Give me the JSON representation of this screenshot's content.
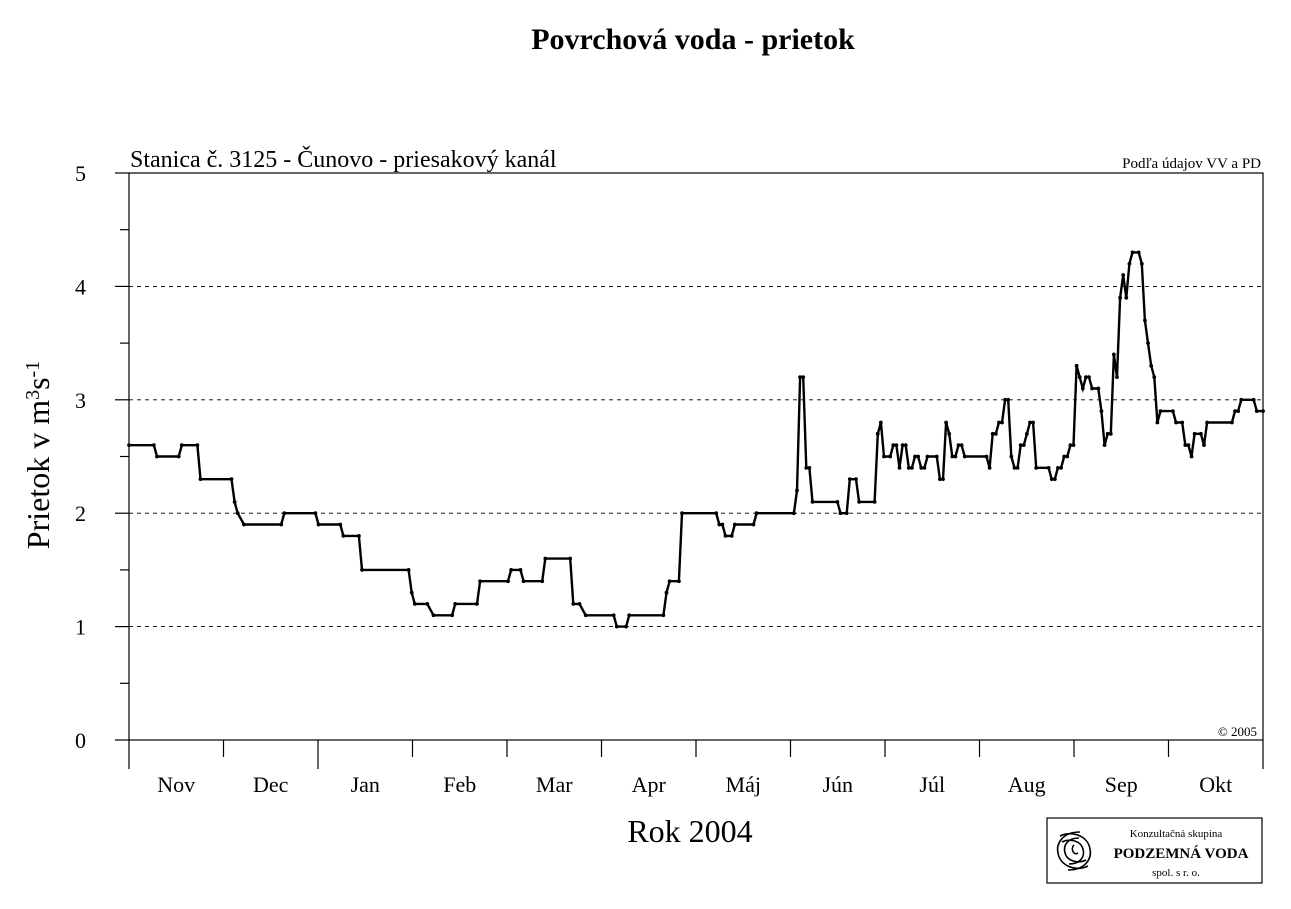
{
  "chart_data": {
    "type": "line",
    "title": "Povrchová voda - prietok",
    "subtitle": "Stanica č. 3125 - Čunovo - priesakový kanál",
    "source_note": "Podľa údajov VV a PD",
    "copyright": "© 2005",
    "xlabel": "Rok 2004",
    "ylabel": "Prietok v m",
    "ylabel_sup1": "3",
    "ylabel_mid": "s",
    "ylabel_sup2": "-1",
    "ylim": [
      0,
      5
    ],
    "yticks": [
      "0",
      "1",
      "2",
      "3",
      "4",
      "5"
    ],
    "grid": "dashed horizontal at 1, 2, 3, 4",
    "x_months": [
      "Nov",
      "Dec",
      "Jan",
      "Feb",
      "Mar",
      "Apr",
      "Máj",
      "Jún",
      "Júl",
      "Aug",
      "Sep",
      "Okt"
    ],
    "x_range_days": [
      0,
      365
    ],
    "series": [
      {
        "color": "#000000",
        "points": [
          [
            0,
            2.6
          ],
          [
            8,
            2.6
          ],
          [
            9,
            2.5
          ],
          [
            16,
            2.5
          ],
          [
            17,
            2.6
          ],
          [
            22,
            2.6
          ],
          [
            23,
            2.3
          ],
          [
            33,
            2.3
          ],
          [
            34,
            2.1
          ],
          [
            35,
            2.0
          ],
          [
            37,
            1.9
          ],
          [
            49,
            1.9
          ],
          [
            50,
            2.0
          ],
          [
            60,
            2.0
          ],
          [
            61,
            1.9
          ],
          [
            68,
            1.9
          ],
          [
            69,
            1.8
          ],
          [
            74,
            1.8
          ],
          [
            75,
            1.5
          ],
          [
            90,
            1.5
          ],
          [
            91,
            1.3
          ],
          [
            92,
            1.2
          ],
          [
            96,
            1.2
          ],
          [
            98,
            1.1
          ],
          [
            104,
            1.1
          ],
          [
            105,
            1.2
          ],
          [
            112,
            1.2
          ],
          [
            113,
            1.4
          ],
          [
            122,
            1.4
          ],
          [
            123,
            1.5
          ],
          [
            126,
            1.5
          ],
          [
            127,
            1.4
          ],
          [
            133,
            1.4
          ],
          [
            134,
            1.6
          ],
          [
            142,
            1.6
          ],
          [
            143,
            1.2
          ],
          [
            145,
            1.2
          ],
          [
            147,
            1.1
          ],
          [
            156,
            1.1
          ],
          [
            157,
            1.0
          ],
          [
            160,
            1.0
          ],
          [
            161,
            1.1
          ],
          [
            172,
            1.1
          ],
          [
            173,
            1.3
          ],
          [
            174,
            1.4
          ],
          [
            177,
            1.4
          ],
          [
            178,
            2.0
          ],
          [
            189,
            2.0
          ],
          [
            190,
            1.9
          ],
          [
            191,
            1.9
          ],
          [
            192,
            1.8
          ],
          [
            194,
            1.8
          ],
          [
            195,
            1.9
          ],
          [
            201,
            1.9
          ],
          [
            202,
            2.0
          ],
          [
            214,
            2.0
          ],
          [
            215,
            2.2
          ],
          [
            216,
            3.2
          ],
          [
            217,
            3.2
          ],
          [
            218,
            2.4
          ],
          [
            219,
            2.4
          ],
          [
            220,
            2.1
          ],
          [
            228,
            2.1
          ],
          [
            229,
            2.0
          ],
          [
            231,
            2.0
          ],
          [
            232,
            2.3
          ],
          [
            234,
            2.3
          ],
          [
            235,
            2.1
          ],
          [
            240,
            2.1
          ],
          [
            241,
            2.7
          ],
          [
            242,
            2.8
          ],
          [
            243,
            2.5
          ],
          [
            245,
            2.5
          ],
          [
            246,
            2.6
          ],
          [
            247,
            2.6
          ],
          [
            248,
            2.4
          ],
          [
            249,
            2.6
          ],
          [
            250,
            2.6
          ],
          [
            251,
            2.4
          ],
          [
            252,
            2.4
          ],
          [
            253,
            2.5
          ],
          [
            254,
            2.5
          ],
          [
            255,
            2.4
          ],
          [
            256,
            2.4
          ],
          [
            257,
            2.5
          ],
          [
            260,
            2.5
          ],
          [
            261,
            2.3
          ],
          [
            262,
            2.3
          ],
          [
            263,
            2.8
          ],
          [
            264,
            2.7
          ],
          [
            265,
            2.5
          ],
          [
            266,
            2.5
          ],
          [
            267,
            2.6
          ],
          [
            268,
            2.6
          ],
          [
            269,
            2.5
          ],
          [
            276,
            2.5
          ],
          [
            277,
            2.4
          ],
          [
            278,
            2.7
          ],
          [
            279,
            2.7
          ],
          [
            280,
            2.8
          ],
          [
            281,
            2.8
          ],
          [
            282,
            3.0
          ],
          [
            283,
            3.0
          ],
          [
            284,
            2.5
          ],
          [
            285,
            2.4
          ],
          [
            286,
            2.4
          ],
          [
            287,
            2.6
          ],
          [
            288,
            2.6
          ],
          [
            289,
            2.7
          ],
          [
            290,
            2.8
          ],
          [
            291,
            2.8
          ],
          [
            292,
            2.4
          ],
          [
            296,
            2.4
          ],
          [
            297,
            2.3
          ],
          [
            298,
            2.3
          ],
          [
            299,
            2.4
          ],
          [
            300,
            2.4
          ],
          [
            301,
            2.5
          ],
          [
            302,
            2.5
          ],
          [
            303,
            2.6
          ],
          [
            304,
            2.6
          ],
          [
            305,
            3.3
          ],
          [
            306,
            3.2
          ],
          [
            307,
            3.1
          ],
          [
            308,
            3.2
          ],
          [
            309,
            3.2
          ],
          [
            310,
            3.1
          ],
          [
            312,
            3.1
          ],
          [
            313,
            2.9
          ],
          [
            314,
            2.6
          ],
          [
            315,
            2.7
          ],
          [
            316,
            2.7
          ],
          [
            317,
            3.4
          ],
          [
            318,
            3.2
          ],
          [
            319,
            3.9
          ],
          [
            320,
            4.1
          ],
          [
            321,
            3.9
          ],
          [
            322,
            4.2
          ],
          [
            323,
            4.3
          ],
          [
            325,
            4.3
          ],
          [
            326,
            4.2
          ],
          [
            327,
            3.7
          ],
          [
            328,
            3.5
          ],
          [
            329,
            3.3
          ],
          [
            330,
            3.2
          ],
          [
            331,
            2.8
          ],
          [
            332,
            2.9
          ],
          [
            336,
            2.9
          ],
          [
            337,
            2.8
          ],
          [
            339,
            2.8
          ],
          [
            340,
            2.6
          ],
          [
            341,
            2.6
          ],
          [
            342,
            2.5
          ],
          [
            343,
            2.7
          ],
          [
            345,
            2.7
          ],
          [
            346,
            2.6
          ],
          [
            347,
            2.8
          ],
          [
            355,
            2.8
          ],
          [
            356,
            2.9
          ],
          [
            357,
            2.9
          ],
          [
            358,
            3.0
          ],
          [
            362,
            3.0
          ],
          [
            363,
            2.9
          ],
          [
            365,
            2.9
          ]
        ]
      }
    ]
  },
  "logo": {
    "line1": "Konzultačná skupina",
    "line2": "PODZEMNÁ VODA",
    "line3": "spol. s r. o."
  }
}
